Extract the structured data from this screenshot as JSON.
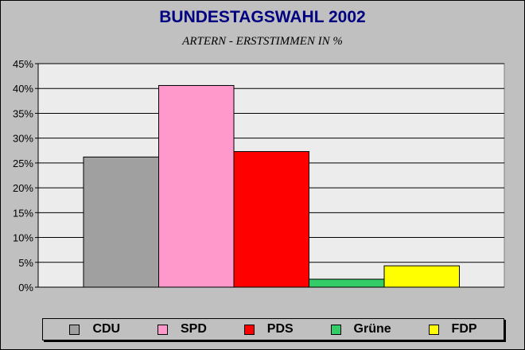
{
  "chart_data": {
    "type": "bar",
    "title": "BUNDESTAGSWAHL 2002",
    "subtitle": "ARTERN - ERSTSTIMMEN IN %",
    "categories": [
      "CDU",
      "SPD",
      "PDS",
      "Grüne",
      "FDP"
    ],
    "values": [
      26.2,
      40.6,
      27.3,
      1.6,
      4.3
    ],
    "colors": [
      "#a0a0a0",
      "#ff99cc",
      "#ff0000",
      "#33cc66",
      "#ffff00"
    ],
    "ylim": [
      0,
      45
    ],
    "yticks": [
      "0%",
      "5%",
      "10%",
      "15%",
      "20%",
      "25%",
      "30%",
      "35%",
      "40%",
      "45%"
    ],
    "grid": true,
    "plot_background": "#ececec",
    "legend_position": "bottom"
  }
}
